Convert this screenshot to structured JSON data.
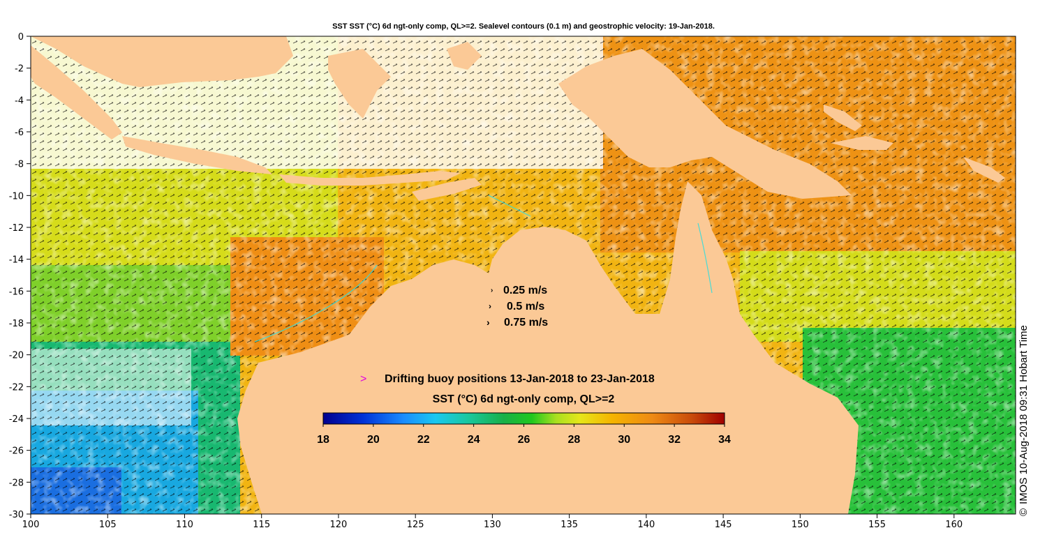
{
  "title": "SST SST (°C) 6d ngt-only comp, QL>=2. Sealevel contours (0.1 m) and geostrophic velocity: 19-Jan-2018.",
  "credit": "IMOS 10-Aug-2018 09:31 Hobart Time",
  "copyright_symbol": "©",
  "axes": {
    "x_ticks": [
      "100",
      "105",
      "110",
      "115",
      "120",
      "125",
      "130",
      "135",
      "140",
      "145",
      "150",
      "155",
      "160"
    ],
    "y_ticks": [
      "0",
      "-2",
      "-4",
      "-6",
      "-8",
      "-10",
      "-12",
      "-14",
      "-16",
      "-18",
      "-20",
      "-22",
      "-24",
      "-26",
      "-28",
      "-30"
    ],
    "x_range": [
      100,
      164
    ],
    "y_range": [
      -30,
      0
    ]
  },
  "velocity_legend": [
    {
      "label": "0.25 m/s",
      "speed": 0.25
    },
    {
      "label": "0.5 m/s",
      "speed": 0.5
    },
    {
      "label": "0.75 m/s",
      "speed": 0.75
    }
  ],
  "buoy_legend": {
    "marker": ">",
    "label": "Drifting buoy positions 13-Jan-2018 to 23-Jan-2018",
    "marker_color": "#e000e0"
  },
  "colorbar": {
    "title": "SST (°C) 6d ngt-only comp, QL>=2",
    "ticks": [
      "18",
      "20",
      "22",
      "24",
      "26",
      "28",
      "30",
      "32",
      "34"
    ],
    "range": [
      18,
      34
    ]
  },
  "colors": {
    "land": "#fbc996",
    "no_data": "#ffffff",
    "arrow": "#000000",
    "contour": "#d8d8d8",
    "rivers": "#33dddd"
  }
}
